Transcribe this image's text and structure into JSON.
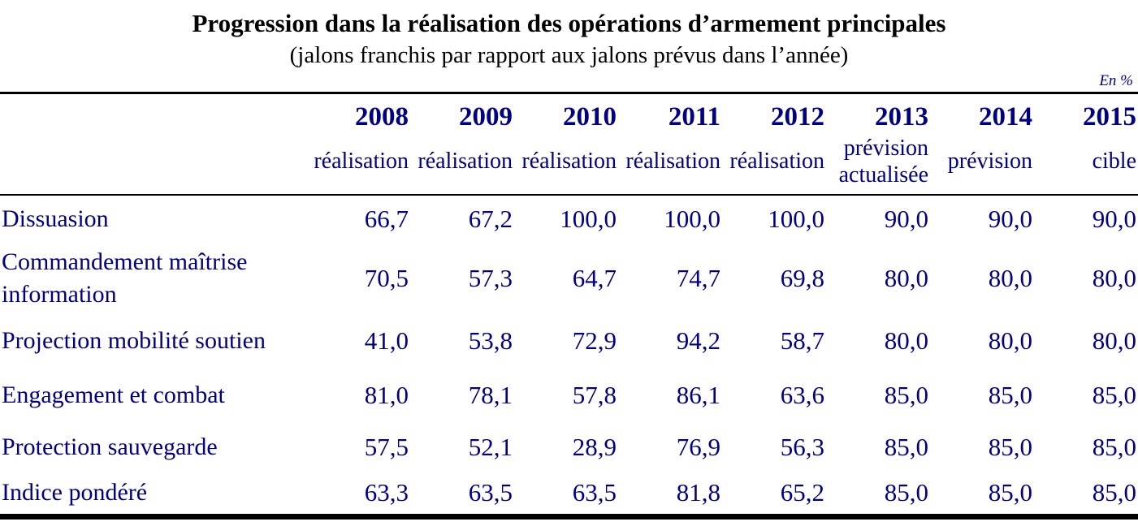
{
  "title": "Progression dans la réalisation des opérations d’armement principales",
  "subtitle": "(jalons franchis par rapport aux jalons prévus dans l’année)",
  "unit_label": "En %",
  "colors": {
    "table_text_navy": "#000080",
    "title_black": "#000000",
    "rule_black": "#000000"
  },
  "table": {
    "columns": [
      {
        "year": "2008",
        "sublabel": "réalisation"
      },
      {
        "year": "2009",
        "sublabel": "réalisation"
      },
      {
        "year": "2010",
        "sublabel": "réalisation"
      },
      {
        "year": "2011",
        "sublabel": "réalisation"
      },
      {
        "year": "2012",
        "sublabel": "réalisation"
      },
      {
        "year": "2013",
        "sublabel": "prévision actualisée"
      },
      {
        "year": "2014",
        "sublabel": "prévision"
      },
      {
        "year": "2015",
        "sublabel": "cible"
      }
    ],
    "rows": [
      {
        "label": "Dissuasion",
        "values": [
          "66,7",
          "67,2",
          "100,0",
          "100,0",
          "100,0",
          "90,0",
          "90,0",
          "90,0"
        ]
      },
      {
        "label": "Commandement maîtrise information",
        "values": [
          "70,5",
          "57,3",
          "64,7",
          "74,7",
          "69,8",
          "80,0",
          "80,0",
          "80,0"
        ]
      },
      {
        "label": "Projection mobilité soutien",
        "values": [
          "41,0",
          "53,8",
          "72,9",
          "94,2",
          "58,7",
          "80,0",
          "80,0",
          "80,0"
        ]
      },
      {
        "label": "Engagement et combat",
        "values": [
          "81,0",
          "78,1",
          "57,8",
          "86,1",
          "63,6",
          "85,0",
          "85,0",
          "85,0"
        ]
      },
      {
        "label": "Protection sauvegarde",
        "values": [
          "57,5",
          "52,1",
          "28,9",
          "76,9",
          "56,3",
          "85,0",
          "85,0",
          "85,0"
        ]
      },
      {
        "label": "Indice pondéré",
        "values": [
          "63,3",
          "63,5",
          "63,5",
          "81,8",
          "65,2",
          "85,0",
          "85,0",
          "85,0"
        ]
      }
    ]
  }
}
